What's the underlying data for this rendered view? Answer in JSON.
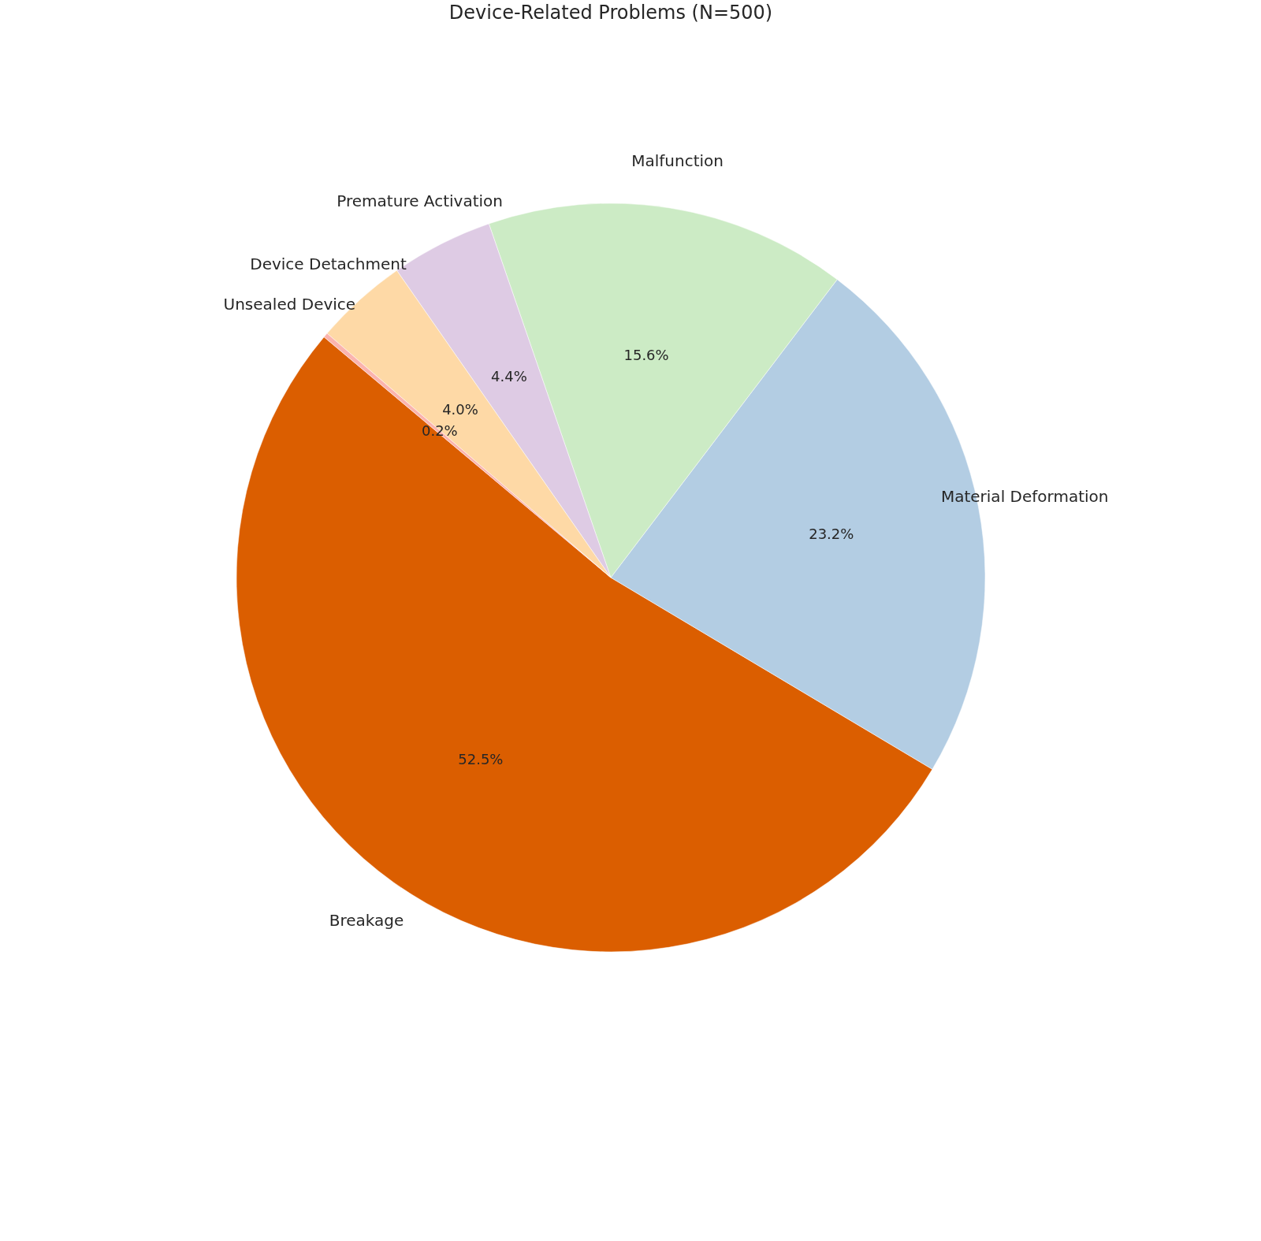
{
  "chart_data": {
    "type": "pie",
    "title": "Device-Related Problems (N=500)",
    "categories": [
      "Breakage",
      "Material Deformation",
      "Malfunction",
      "Premature Activation",
      "Device Detachment",
      "Unsealed Device"
    ],
    "values": [
      52.5,
      23.2,
      15.6,
      4.4,
      4.0,
      0.2
    ],
    "value_labels": [
      "52.5%",
      "23.2%",
      "15.6%",
      "4.4%",
      "4.0%",
      "0.2%"
    ],
    "colors": [
      "#db5e00",
      "#b3cde3",
      "#ccebc5",
      "#decbe4",
      "#fed9a6",
      "#fbb4ae"
    ],
    "legend": false
  }
}
